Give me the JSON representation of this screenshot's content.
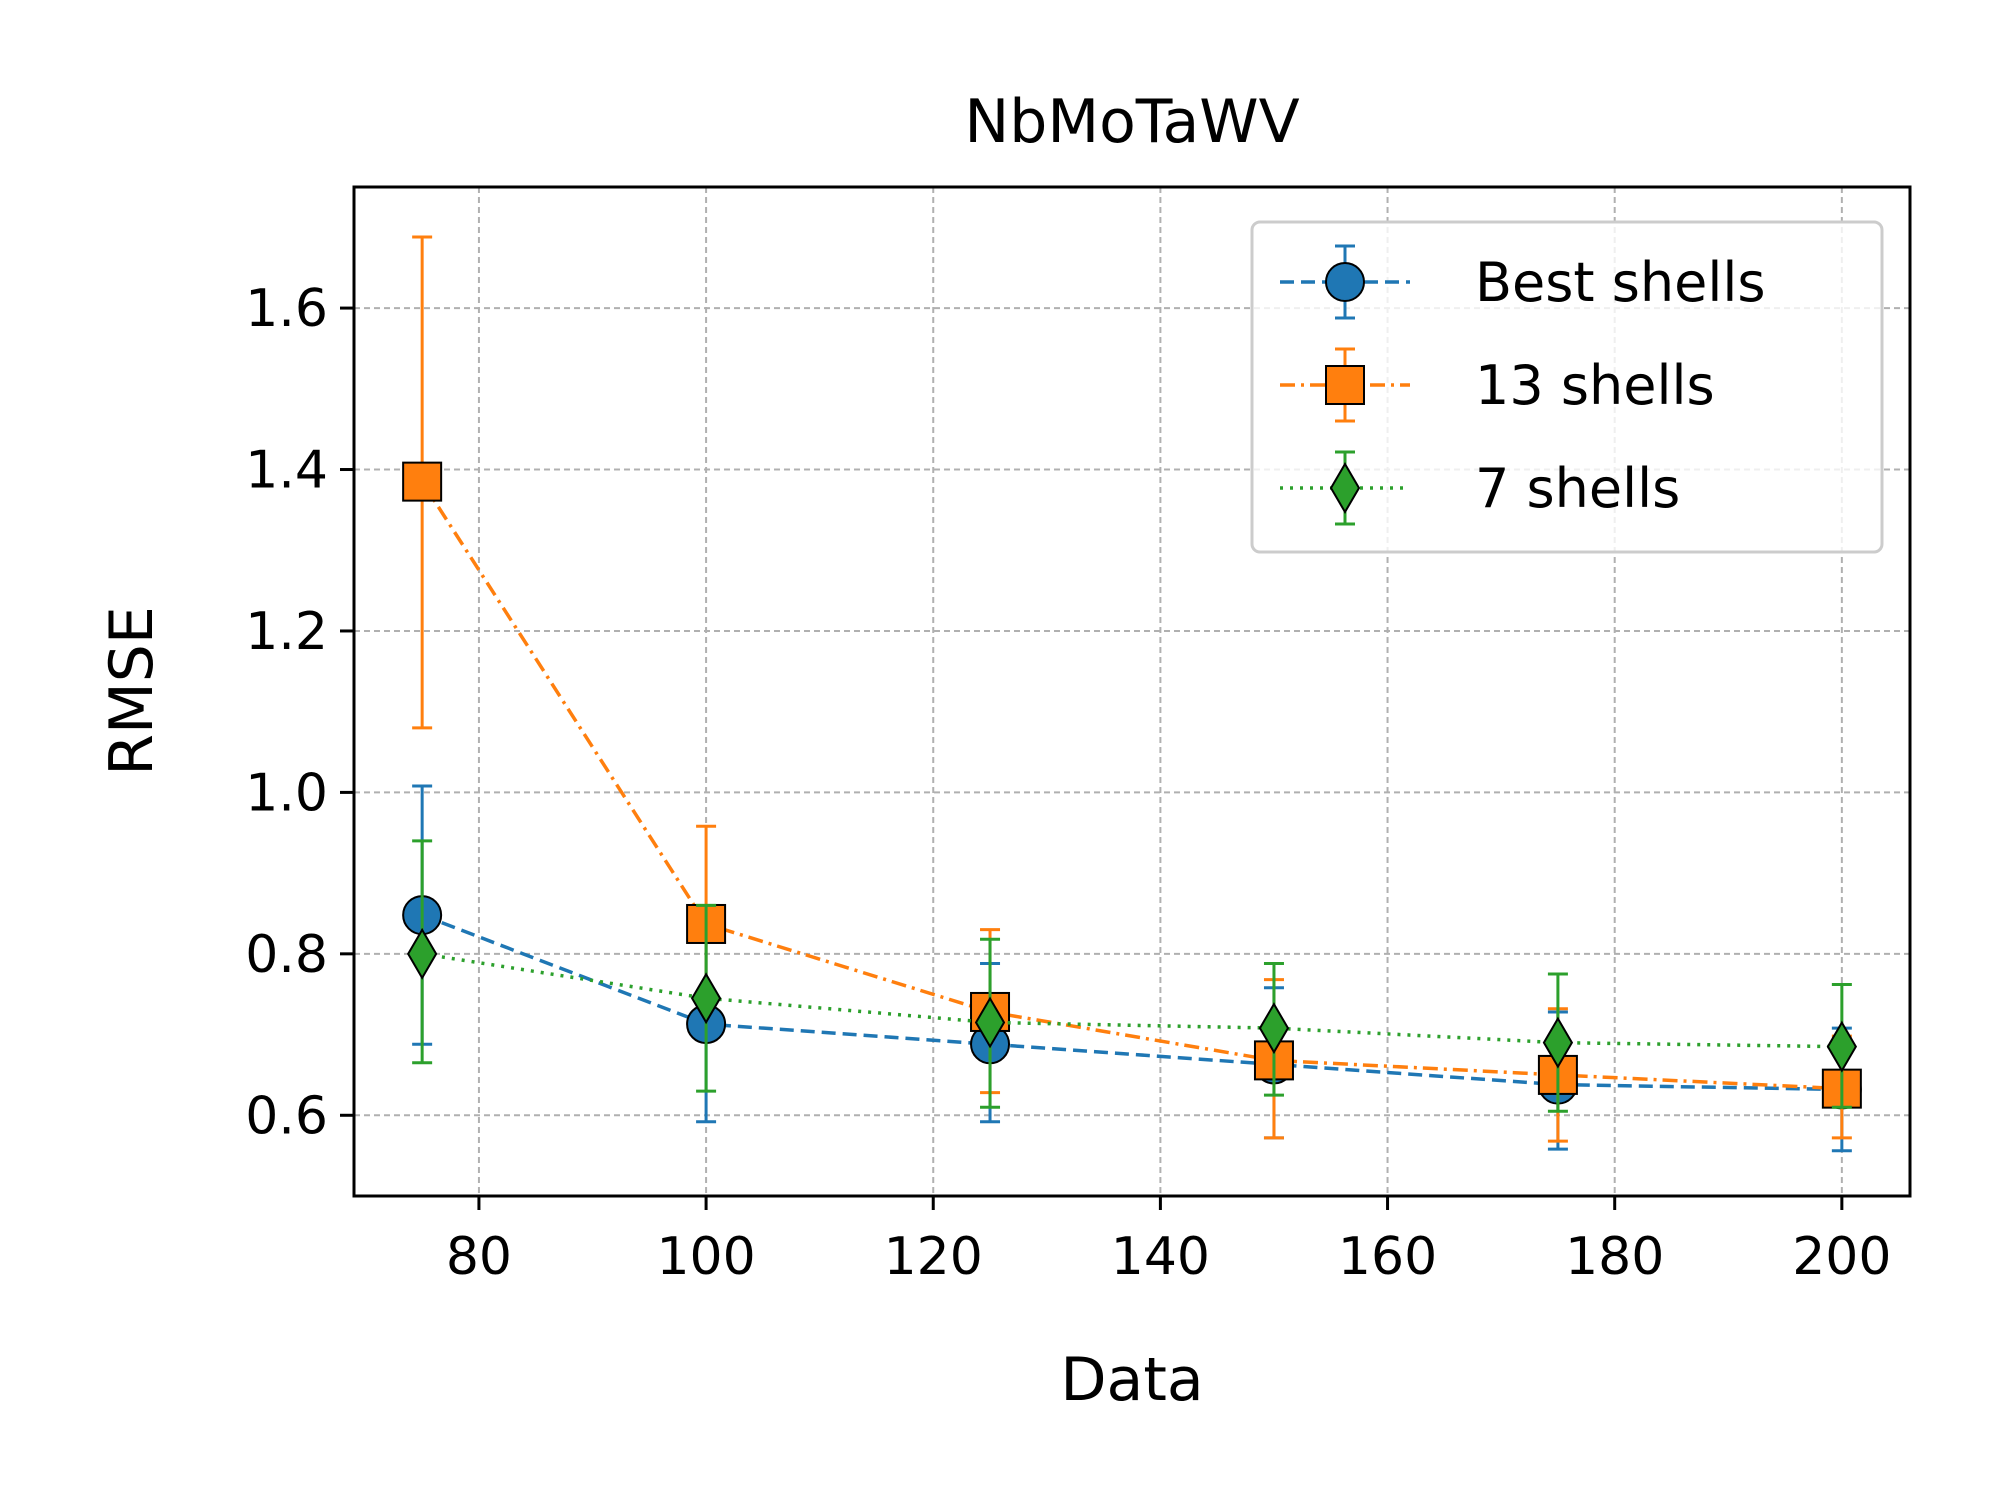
{
  "chart_data": {
    "type": "line",
    "title": "NbMoTaWV",
    "xlabel": "Data",
    "ylabel": "RMSE",
    "xlim": [
      69,
      206
    ],
    "ylim": [
      0.5,
      1.75
    ],
    "xticks": [
      80,
      100,
      120,
      140,
      160,
      180,
      200
    ],
    "xtick_labels": [
      "80",
      "100",
      "120",
      "140",
      "160",
      "180",
      "200"
    ],
    "yticks": [
      0.6,
      0.8,
      1.0,
      1.2,
      1.4,
      1.6
    ],
    "ytick_labels": [
      "0.6",
      "0.8",
      "1.0",
      "1.2",
      "1.4",
      "1.6"
    ],
    "grid": true,
    "legend_position": "top-right",
    "x": [
      75,
      100,
      125,
      150,
      175,
      200
    ],
    "series": [
      {
        "name": "Best shells",
        "color": "#1f77b4",
        "linestyle": "dashed",
        "marker": "circle",
        "values": [
          0.848,
          0.713,
          0.688,
          0.663,
          0.638,
          0.632
        ],
        "err_low": [
          0.688,
          0.592,
          0.592,
          0.572,
          0.558,
          0.556
        ],
        "err_high": [
          1.008,
          0.828,
          0.788,
          0.758,
          0.728,
          0.708
        ]
      },
      {
        "name": "13 shells",
        "color": "#ff7f0e",
        "linestyle": "dashdot",
        "marker": "square",
        "values": [
          1.385,
          0.837,
          0.728,
          0.668,
          0.65,
          0.633
        ],
        "err_low": [
          1.08,
          0.738,
          0.628,
          0.572,
          0.568,
          0.572
        ],
        "err_high": [
          1.688,
          0.958,
          0.83,
          0.768,
          0.732,
          0.698
        ]
      },
      {
        "name": "7 shells",
        "color": "#2ca02c",
        "linestyle": "dotted",
        "marker": "diamond",
        "values": [
          0.8,
          0.745,
          0.715,
          0.708,
          0.69,
          0.685
        ],
        "err_low": [
          0.665,
          0.63,
          0.61,
          0.625,
          0.605,
          0.61
        ],
        "err_high": [
          0.94,
          0.86,
          0.818,
          0.788,
          0.775,
          0.762
        ]
      }
    ]
  }
}
